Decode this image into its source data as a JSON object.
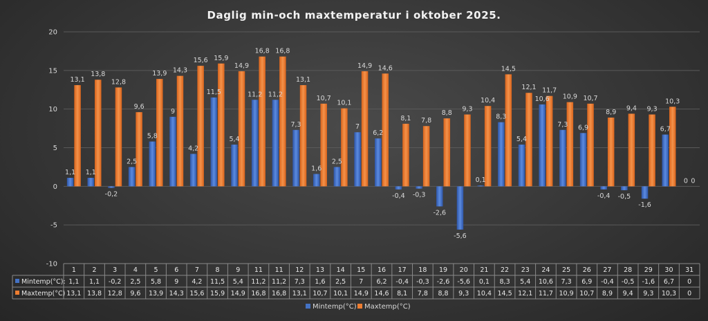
{
  "chart_data": {
    "type": "bar",
    "title": "Daglig min-och maxtemperatur i oktober 2025.",
    "categories": [
      "1",
      "2",
      "3",
      "4",
      "5",
      "6",
      "7",
      "8",
      "9",
      "11",
      "11",
      "12",
      "13",
      "14",
      "15",
      "16",
      "17",
      "18",
      "19",
      "20",
      "21",
      "22",
      "23",
      "24",
      "25",
      "26",
      "27",
      "28",
      "29",
      "30",
      "31"
    ],
    "series": [
      {
        "name": "Mintemp(°C):",
        "color": "#4472c4",
        "values": [
          1.1,
          1.1,
          -0.2,
          2.5,
          5.8,
          9,
          4.2,
          11.5,
          5.4,
          11.2,
          11.2,
          7.3,
          1.6,
          2.5,
          7,
          6.2,
          -0.4,
          -0.3,
          -2.6,
          -5.6,
          0.1,
          8.3,
          5.4,
          10.6,
          7.3,
          6.9,
          -0.4,
          -0.5,
          -1.6,
          6.7,
          0
        ],
        "labels": [
          "1,1",
          "1,1",
          "-0,2",
          "2,5",
          "5,8",
          "9",
          "4,2",
          "11,5",
          "5,4",
          "11,2",
          "11,2",
          "7,3",
          "1,6",
          "2,5",
          "7",
          "6,2",
          "-0,4",
          "-0,3",
          "-2,6",
          "-5,6",
          "0,1",
          "8,3",
          "5,4",
          "10,6",
          "7,3",
          "6,9",
          "-0,4",
          "-0,5",
          "-1,6",
          "6,7",
          "0"
        ]
      },
      {
        "name": "Maxtemp(°C)",
        "color": "#ed7d31",
        "values": [
          13.1,
          13.8,
          12.8,
          9.6,
          13.9,
          14.3,
          15.6,
          15.9,
          14.9,
          16.8,
          16.8,
          13.1,
          10.7,
          10.1,
          14.9,
          14.6,
          8.1,
          7.8,
          8.8,
          9.3,
          10.4,
          14.5,
          12.1,
          11.7,
          10.9,
          10.7,
          8.9,
          9.4,
          9.3,
          10.3,
          0
        ],
        "labels": [
          "13,1",
          "13,8",
          "12,8",
          "9,6",
          "13,9",
          "14,3",
          "15,6",
          "15,9",
          "14,9",
          "16,8",
          "16,8",
          "13,1",
          "10,7",
          "10,1",
          "14,9",
          "14,6",
          "8,1",
          "7,8",
          "8,8",
          "9,3",
          "10,4",
          "14,5",
          "12,1",
          "11,7",
          "10,9",
          "10,7",
          "8,9",
          "9,4",
          "9,3",
          "10,3",
          "0"
        ]
      }
    ],
    "ylim": [
      -10,
      20
    ],
    "yticks": [
      "-10",
      "-5",
      "0",
      "5",
      "10",
      "15",
      "20"
    ],
    "grid": true,
    "legend": "bottom",
    "data_table": true
  }
}
